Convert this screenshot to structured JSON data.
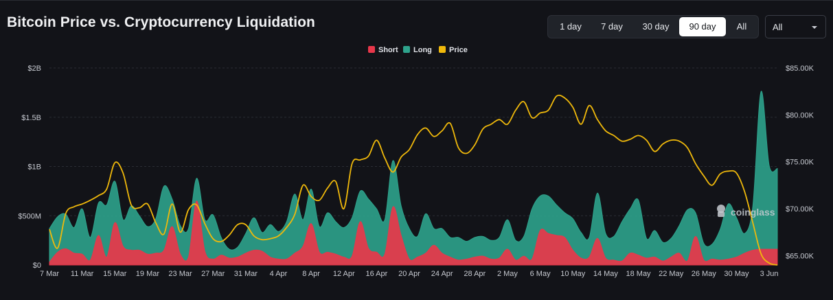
{
  "header": {
    "title": "Bitcoin Price vs. Cryptocurrency Liquidation"
  },
  "range_selector": {
    "options": [
      "1 day",
      "7 day",
      "30 day",
      "90 day",
      "All"
    ],
    "selected": "90 day"
  },
  "coin_select": {
    "value": "All",
    "icon": "chevron-down-icon"
  },
  "watermark": {
    "text": "coinglass",
    "icon": "coinglass-logo-icon"
  },
  "colors": {
    "short": "#e8374a",
    "long": "#2ea38c",
    "price": "#f0b90b",
    "background": "#121318",
    "grid": "#2b2d34",
    "axis_text": "#c7cad1"
  },
  "chart_data": {
    "type": "area",
    "title": "Bitcoin Price vs. Cryptocurrency Liquidation",
    "legend": {
      "position": "top-center",
      "entries": [
        "Short",
        "Long",
        "Price"
      ]
    },
    "x_tick_labels": [
      "7 Mar",
      "11 Mar",
      "15 Mar",
      "19 Mar",
      "23 Mar",
      "27 Mar",
      "31 Mar",
      "4 Apr",
      "8 Apr",
      "12 Apr",
      "16 Apr",
      "20 Apr",
      "24 Apr",
      "28 Apr",
      "2 May",
      "6 May",
      "10 May",
      "14 May",
      "18 May",
      "22 May",
      "26 May",
      "30 May",
      "3 Jun"
    ],
    "y_left": {
      "ticks": [
        "$0",
        "$500M",
        "$1B",
        "$1.5B",
        "$2B"
      ],
      "tick_values": [
        0,
        500000000,
        1000000000,
        1500000000,
        2000000000
      ],
      "range": [
        0,
        2000000000
      ]
    },
    "y_right": {
      "ticks": [
        "$65.00K",
        "$70.00K",
        "$75.00K",
        "$80.00K",
        "$85.00K"
      ],
      "tick_values": [
        65000,
        70000,
        75000,
        80000,
        85000
      ],
      "range": [
        64000,
        85000
      ]
    },
    "grid": true,
    "x": [
      "7 Mar",
      "8 Mar",
      "9 Mar",
      "10 Mar",
      "11 Mar",
      "12 Mar",
      "13 Mar",
      "14 Mar",
      "15 Mar",
      "16 Mar",
      "17 Mar",
      "18 Mar",
      "19 Mar",
      "20 Mar",
      "21 Mar",
      "22 Mar",
      "23 Mar",
      "24 Mar",
      "25 Mar",
      "26 Mar",
      "27 Mar",
      "28 Mar",
      "29 Mar",
      "30 Mar",
      "31 Mar",
      "1 Apr",
      "2 Apr",
      "3 Apr",
      "4 Apr",
      "5 Apr",
      "6 Apr",
      "7 Apr",
      "8 Apr",
      "9 Apr",
      "10 Apr",
      "11 Apr",
      "12 Apr",
      "13 Apr",
      "14 Apr",
      "15 Apr",
      "16 Apr",
      "17 Apr",
      "18 Apr",
      "19 Apr",
      "20 Apr",
      "21 Apr",
      "22 Apr",
      "23 Apr",
      "24 Apr",
      "25 Apr",
      "26 Apr",
      "27 Apr",
      "28 Apr",
      "29 Apr",
      "30 Apr",
      "1 May",
      "2 May",
      "3 May",
      "4 May",
      "5 May",
      "6 May",
      "7 May",
      "8 May",
      "9 May",
      "10 May",
      "11 May",
      "12 May",
      "13 May",
      "14 May",
      "15 May",
      "16 May",
      "17 May",
      "18 May",
      "19 May",
      "20 May",
      "21 May",
      "22 May",
      "23 May",
      "24 May",
      "25 May",
      "26 May",
      "27 May",
      "28 May",
      "29 May",
      "30 May",
      "31 May",
      "1 Jun",
      "2 Jun",
      "3 Jun",
      "4 Jun"
    ],
    "series": [
      {
        "name": "Short",
        "axis": "left",
        "values": [
          30,
          130,
          165,
          120,
          110,
          50,
          300,
          80,
          430,
          190,
          150,
          150,
          110,
          120,
          150,
          390,
          110,
          80,
          650,
          140,
          60,
          100,
          70,
          80,
          120,
          150,
          140,
          80,
          60,
          60,
          120,
          190,
          420,
          130,
          130,
          110,
          80,
          90,
          440,
          170,
          130,
          110,
          590,
          300,
          60,
          80,
          120,
          200,
          120,
          80,
          50,
          60,
          80,
          90,
          60,
          70,
          160,
          50,
          90,
          60,
          350,
          320,
          300,
          280,
          150,
          70,
          80,
          270,
          70,
          50,
          40,
          120,
          100,
          70,
          80,
          40,
          80,
          120,
          40,
          290,
          50,
          60,
          50,
          60,
          80,
          120,
          150,
          160,
          160,
          160
        ]
      },
      {
        "name": "Long",
        "axis": "left",
        "values": [
          340,
          360,
          350,
          260,
          460,
          230,
          330,
          530,
          420,
          270,
          450,
          350,
          280,
          350,
          650,
          280,
          290,
          290,
          230,
          320,
          450,
          180,
          90,
          100,
          200,
          330,
          190,
          330,
          280,
          380,
          600,
          270,
          350,
          260,
          400,
          330,
          300,
          390,
          310,
          500,
          440,
          350,
          470,
          300,
          310,
          210,
          400,
          170,
          250,
          200,
          230,
          180,
          200,
          200,
          190,
          210,
          300,
          200,
          200,
          510,
          350,
          380,
          310,
          250,
          320,
          260,
          200,
          460,
          250,
          240,
          400,
          450,
          560,
          200,
          270,
          190,
          190,
          280,
          520,
          240,
          170,
          150,
          310,
          560,
          400,
          200,
          450,
          1600,
          850,
          820
        ]
      },
      {
        "name": "Price",
        "axis": "right",
        "values": [
          67.8,
          65.8,
          69.5,
          70.2,
          70.5,
          70.9,
          71.4,
          72.1,
          74.9,
          73.8,
          70.4,
          70.1,
          70.5,
          68.5,
          67.3,
          70.5,
          67.5,
          69.9,
          70.4,
          68.4,
          66.8,
          66.5,
          67.2,
          68.3,
          68.3,
          67.1,
          66.7,
          66.8,
          67.1,
          68.0,
          69.4,
          72.5,
          71.3,
          70.9,
          72.2,
          72.9,
          70.0,
          74.8,
          75.2,
          75.6,
          77.3,
          75.4,
          73.9,
          75.5,
          76.3,
          77.9,
          78.6,
          77.7,
          78.3,
          79.1,
          76.5,
          75.9,
          76.8,
          78.5,
          79.0,
          79.5,
          79.0,
          80.5,
          81.4,
          79.7,
          80.2,
          80.5,
          82.0,
          81.8,
          80.8,
          79.0,
          81.0,
          79.5,
          78.3,
          77.8,
          77.2,
          77.4,
          77.8,
          77.3,
          76.1,
          76.9,
          77.3,
          77.2,
          76.5,
          74.8,
          73.5,
          72.5,
          73.7,
          74.0,
          73.8,
          71.8,
          68.5,
          65.2,
          64.2,
          64.0
        ]
      }
    ],
    "values_note": "Short and Long values in millions of USD; Price in thousands of USD"
  }
}
